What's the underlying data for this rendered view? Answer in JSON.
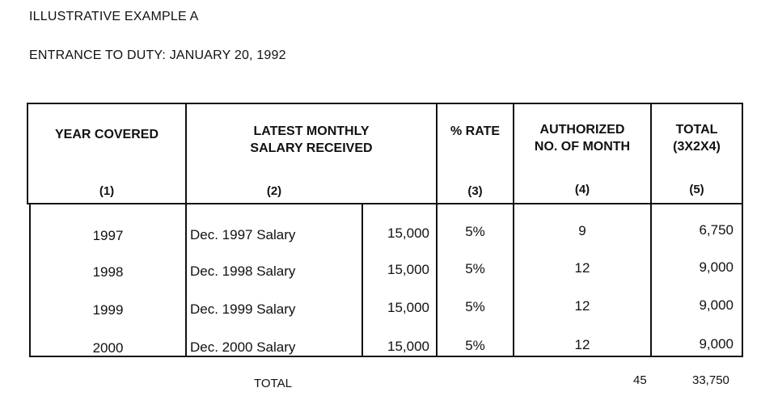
{
  "document": {
    "title": "ILLUSTRATIVE EXAMPLE  A",
    "subtitle": "ENTRANCE TO DUTY: JANUARY 20, 1992"
  },
  "table": {
    "headers": [
      {
        "label": "YEAR COVERED",
        "number": "(1)"
      },
      {
        "label": "LATEST MONTHLY\nSALARY RECEIVED",
        "number": "(2)"
      },
      {
        "label": "% RATE",
        "number": "(3)"
      },
      {
        "label": "AUTHORIZED\nNO. OF MONTH",
        "number": "(4)"
      },
      {
        "label": "TOTAL\n(3X2X4)",
        "number": "(5)"
      }
    ],
    "rows": [
      {
        "year": "1997",
        "desc": "Dec. 1997 Salary",
        "amount": "15,000",
        "rate": "5%",
        "months": "9",
        "total": "6,750"
      },
      {
        "year": "1998",
        "desc": "Dec. 1998 Salary",
        "amount": "15,000",
        "rate": "5%",
        "months": "12",
        "total": "9,000"
      },
      {
        "year": "1999",
        "desc": "Dec. 1999 Salary",
        "amount": "15,000",
        "rate": "5%",
        "months": "12",
        "total": "9,000"
      },
      {
        "year": "2000",
        "desc": "Dec. 2000 Salary",
        "amount": "15,000",
        "rate": "5%",
        "months": "12",
        "total": "9,000"
      }
    ],
    "footer": {
      "label": "TOTAL",
      "months": "45",
      "total": "33,750"
    }
  }
}
